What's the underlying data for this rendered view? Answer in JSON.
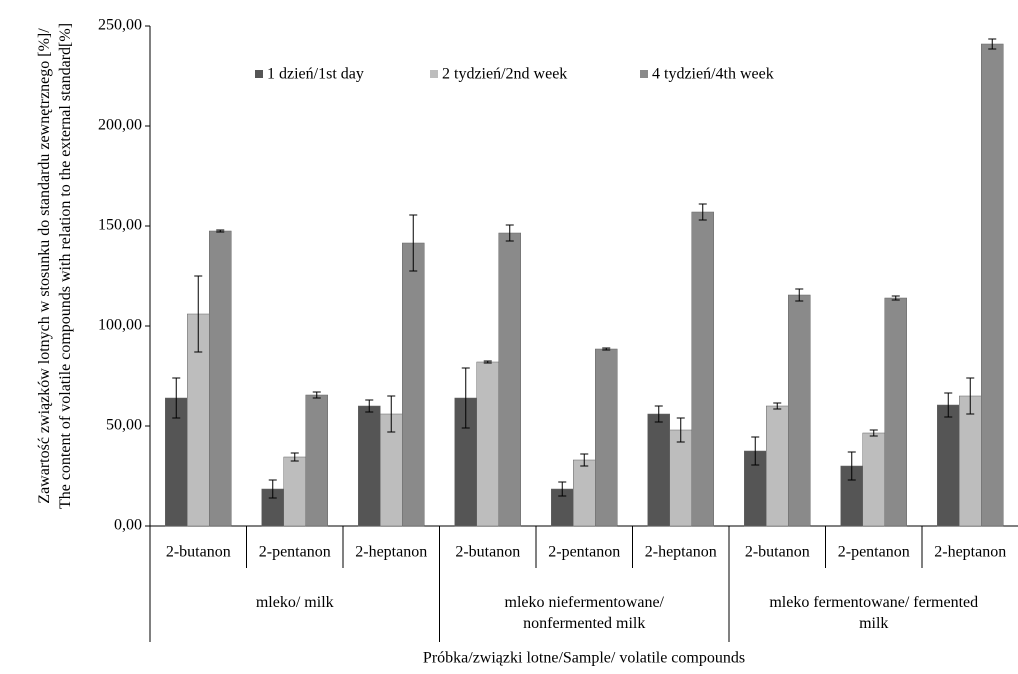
{
  "chart_data": {
    "type": "bar",
    "y_label": "Zawartość związków lotnych w stosunku do standardu zewnętrznego [%]/ The content of volatile compounds with relation to the external standard[%]",
    "x_label": "Próbka/związki lotne/Sample/ volatile compounds",
    "groups": [
      {
        "name": "mleko/ milk",
        "categories": [
          "2-butanon",
          "2-pentanon",
          "2-heptanon"
        ]
      },
      {
        "name": "mleko niefermentowane/ nonfermented milk",
        "categories": [
          "2-butanon",
          "2-pentanon",
          "2-heptanon"
        ]
      },
      {
        "name": "mleko fermentowane/ fermented milk",
        "categories": [
          "2-butanon",
          "2-pentanon",
          "2-heptanon"
        ]
      }
    ],
    "series": [
      {
        "name": "1 dzień/1st day",
        "color": "#555555",
        "values": [
          64,
          18.5,
          60,
          64,
          18.5,
          56,
          37.5,
          30,
          60.5
        ],
        "errors": [
          10,
          4.5,
          3,
          15,
          3.5,
          4,
          7,
          7,
          6
        ]
      },
      {
        "name": "2 tydzień/2nd week",
        "color": "#bdbdbd",
        "values": [
          106,
          34.5,
          56,
          82,
          33,
          48,
          60,
          46.5,
          65
        ],
        "errors": [
          19,
          2,
          9,
          0.5,
          3,
          6,
          1.5,
          1.5,
          9
        ]
      },
      {
        "name": "4 tydzień/4th week",
        "color": "#8a8a8a",
        "values": [
          147.5,
          65.5,
          141.5,
          146.5,
          88.5,
          157,
          115.5,
          114,
          241
        ],
        "errors": [
          0.5,
          1.5,
          14,
          4,
          0.5,
          4,
          3,
          1,
          2.5
        ]
      }
    ],
    "ylim": [
      0,
      250
    ],
    "yticks": [
      {
        "value": 0,
        "label": "0,00"
      },
      {
        "value": 50,
        "label": "50,00"
      },
      {
        "value": 100,
        "label": "100,00"
      },
      {
        "value": 150,
        "label": "150,00"
      },
      {
        "value": 200,
        "label": "200,00"
      },
      {
        "value": 250,
        "label": "250,00"
      }
    ]
  }
}
